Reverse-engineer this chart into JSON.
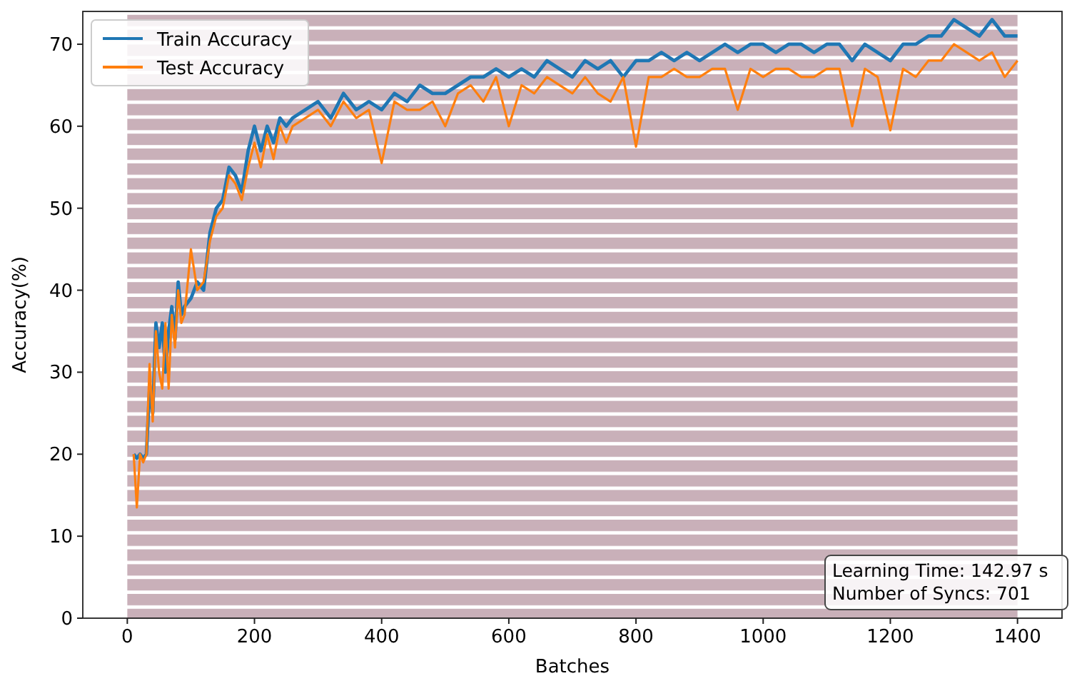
{
  "chart_data": {
    "type": "line",
    "xlabel": "Batches",
    "ylabel": "Accuracy(%)",
    "x": [
      10,
      15,
      20,
      25,
      30,
      35,
      40,
      45,
      50,
      55,
      60,
      65,
      70,
      75,
      80,
      85,
      90,
      100,
      110,
      120,
      130,
      140,
      150,
      160,
      170,
      180,
      190,
      200,
      210,
      220,
      230,
      240,
      250,
      260,
      280,
      300,
      320,
      340,
      360,
      380,
      400,
      420,
      440,
      460,
      480,
      500,
      520,
      540,
      560,
      580,
      600,
      620,
      640,
      660,
      680,
      700,
      720,
      740,
      760,
      780,
      800,
      820,
      840,
      860,
      880,
      900,
      920,
      940,
      960,
      980,
      1000,
      1020,
      1040,
      1060,
      1080,
      1100,
      1120,
      1140,
      1160,
      1180,
      1200,
      1220,
      1240,
      1260,
      1280,
      1300,
      1320,
      1340,
      1360,
      1380,
      1400
    ],
    "series": [
      {
        "name": "Train Accuracy",
        "color": "#1f77b4",
        "values": [
          20,
          19.5,
          20,
          19.5,
          20,
          28,
          25,
          36,
          33,
          36,
          30,
          35,
          38,
          34,
          41,
          37,
          38,
          39,
          41,
          40,
          47,
          50,
          51,
          55,
          54,
          52,
          57,
          60,
          57,
          60,
          58,
          61,
          60,
          61,
          62,
          63,
          61,
          64,
          62,
          63,
          62,
          64,
          63,
          65,
          64,
          64,
          65,
          66,
          66,
          67,
          66,
          67,
          66,
          68,
          67,
          66,
          68,
          67,
          68,
          66,
          68,
          68,
          69,
          68,
          69,
          68,
          69,
          70,
          69,
          70,
          70,
          69,
          70,
          70,
          69,
          70,
          70,
          68,
          70,
          69,
          68,
          70,
          70,
          71,
          71,
          73,
          72,
          71,
          73,
          71,
          71
        ]
      },
      {
        "name": "Test Accuracy",
        "color": "#ff7f0e",
        "values": [
          20,
          13.5,
          20,
          19,
          20,
          31,
          24,
          35,
          30,
          28,
          36,
          28,
          37,
          33,
          40,
          36,
          37,
          45,
          40,
          41,
          46,
          49,
          50,
          54,
          53,
          51,
          55,
          58,
          55,
          59,
          56,
          60,
          58,
          60,
          61,
          62,
          60,
          63,
          61,
          62,
          55.5,
          63,
          62,
          62,
          63,
          60,
          64,
          65,
          63,
          66,
          60,
          65,
          64,
          66,
          65,
          64,
          66,
          64,
          63,
          66,
          57.5,
          66,
          66,
          67,
          66,
          66,
          67,
          67,
          62,
          67,
          66,
          67,
          67,
          66,
          66,
          67,
          67,
          60,
          67,
          66,
          59.5,
          67,
          66,
          68,
          68,
          70,
          69,
          68,
          69,
          66,
          68
        ]
      }
    ],
    "xlim": [
      -70,
      1470
    ],
    "ylim": [
      0,
      74
    ],
    "xticks": [
      0,
      200,
      400,
      600,
      800,
      1000,
      1200,
      1400
    ],
    "yticks": [
      0,
      10,
      20,
      30,
      40,
      50,
      60,
      70
    ],
    "bands": [
      {
        "axis": "x",
        "from": 0,
        "to": 1400,
        "color": "#c9b0b9"
      }
    ],
    "legend": "top left",
    "grid": false,
    "annotations": [
      "Learning Time: 142.97 s\nNumber of Syncs: 701"
    ]
  }
}
